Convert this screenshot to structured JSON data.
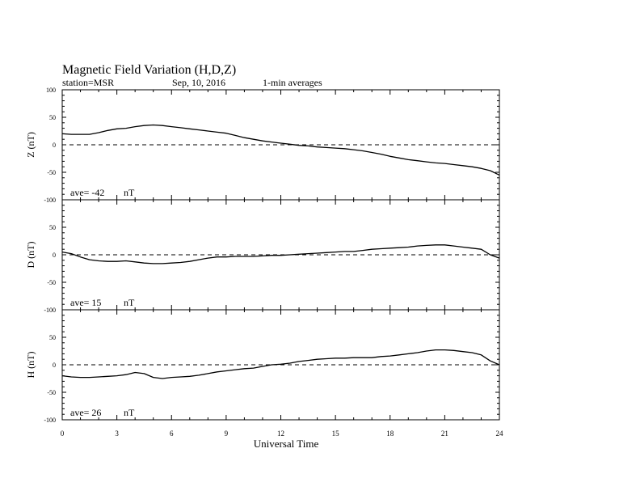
{
  "header": {
    "title": "Magnetic Field Variation (H,D,Z)",
    "station": "station=MSR",
    "date": "Sep, 10, 2016",
    "averaging": "1-min averages"
  },
  "colors": {
    "trace": "#000000",
    "zero_line": "#000000",
    "background": "#ffffff"
  },
  "chart_data": {
    "type": "line",
    "xlabel": "Universal Time",
    "xlim": [
      0,
      24
    ],
    "x_ticks": [
      0,
      3,
      6,
      9,
      12,
      15,
      18,
      21,
      24
    ],
    "panels": [
      {
        "id": "Z",
        "ylabel": "Z (nT)",
        "ylim": [
          -100,
          100
        ],
        "y_ticks": [
          100,
          50,
          0,
          -50,
          -100
        ],
        "zero_line": "dashed",
        "ave_label": "ave= -42",
        "ave_unit": "nT",
        "x": [
          0,
          0.5,
          1,
          1.5,
          2,
          2.5,
          3,
          3.5,
          4,
          4.5,
          5,
          5.5,
          6,
          6.5,
          7,
          7.5,
          8,
          8.5,
          9,
          9.5,
          10,
          10.5,
          11,
          11.5,
          12,
          12.5,
          13,
          13.5,
          14,
          14.5,
          15,
          15.5,
          16,
          16.5,
          17,
          17.5,
          18,
          18.5,
          19,
          19.5,
          20,
          20.5,
          21,
          21.5,
          22,
          22.5,
          23,
          23.5,
          24
        ],
        "y": [
          20,
          19,
          19,
          19,
          22,
          26,
          29,
          30,
          33,
          35,
          36,
          35,
          33,
          31,
          29,
          27,
          25,
          23,
          21,
          17,
          13,
          10,
          7,
          5,
          3,
          1,
          -1,
          -2,
          -4,
          -5,
          -6,
          -7,
          -9,
          -11,
          -14,
          -17,
          -21,
          -24,
          -27,
          -29,
          -31,
          -33,
          -34,
          -36,
          -38,
          -40,
          -43,
          -47,
          -55
        ]
      },
      {
        "id": "D",
        "ylabel": "D (nT)",
        "ylim": [
          -100,
          100
        ],
        "y_ticks": [
          100,
          50,
          0,
          -50,
          -100
        ],
        "zero_line": "dashed",
        "ave_label": "ave= 15",
        "ave_unit": "nT",
        "x": [
          0,
          0.5,
          1,
          1.5,
          2,
          2.5,
          3,
          3.5,
          4,
          4.5,
          5,
          5.5,
          6,
          6.5,
          7,
          7.5,
          8,
          8.5,
          9,
          9.5,
          10,
          10.5,
          11,
          11.5,
          12,
          12.5,
          13,
          13.5,
          14,
          14.5,
          15,
          15.5,
          16,
          16.5,
          17,
          17.5,
          18,
          18.5,
          19,
          19.5,
          20,
          20.5,
          21,
          21.5,
          22,
          22.5,
          23,
          23.5,
          24
        ],
        "y": [
          5,
          2,
          -4,
          -9,
          -11,
          -12,
          -12,
          -11,
          -13,
          -15,
          -16,
          -16,
          -15,
          -14,
          -12,
          -9,
          -6,
          -4,
          -4,
          -3,
          -3,
          -3,
          -2,
          -1,
          -1,
          0,
          1,
          2,
          3,
          4,
          5,
          6,
          6,
          8,
          10,
          11,
          12,
          13,
          14,
          16,
          17,
          18,
          18,
          16,
          14,
          12,
          10,
          0,
          -6
        ]
      },
      {
        "id": "H",
        "ylabel": "H (nT)",
        "ylim": [
          -100,
          100
        ],
        "y_ticks": [
          100,
          50,
          0,
          -50,
          -100
        ],
        "zero_line": "dashed",
        "ave_label": "ave= 26",
        "ave_unit": "nT",
        "x": [
          0,
          0.5,
          1,
          1.5,
          2,
          2.5,
          3,
          3.5,
          4,
          4.5,
          5,
          5.5,
          6,
          6.5,
          7,
          7.5,
          8,
          8.5,
          9,
          9.5,
          10,
          10.5,
          11,
          11.5,
          12,
          12.5,
          13,
          13.5,
          14,
          14.5,
          15,
          15.5,
          16,
          16.5,
          17,
          17.5,
          18,
          18.5,
          19,
          19.5,
          20,
          20.5,
          21,
          21.5,
          22,
          22.5,
          23,
          23.5,
          24
        ],
        "y": [
          -20,
          -22,
          -23,
          -23,
          -22,
          -21,
          -20,
          -18,
          -14,
          -16,
          -23,
          -25,
          -23,
          -22,
          -21,
          -19,
          -16,
          -13,
          -11,
          -9,
          -7,
          -6,
          -3,
          0,
          1,
          3,
          6,
          8,
          10,
          11,
          12,
          12,
          13,
          13,
          13,
          15,
          16,
          18,
          20,
          22,
          25,
          27,
          27,
          26,
          24,
          22,
          18,
          7,
          0
        ]
      }
    ]
  }
}
